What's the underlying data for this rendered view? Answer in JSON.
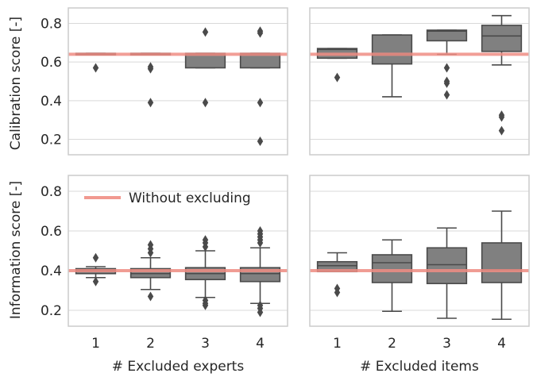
{
  "chart_data": [
    {
      "type": "box",
      "panel": "top-left",
      "title": "",
      "xlabel": "",
      "ylabel": "Calibration score [-]",
      "categories": [
        "1",
        "2",
        "3",
        "4"
      ],
      "ylim": [
        0.12,
        0.88
      ],
      "yticks": [
        "0.2",
        "0.4",
        "0.6",
        "0.8"
      ],
      "baseline": 0.64,
      "boxes": [
        {
          "q1": 0.638,
          "median": 0.642,
          "q3": 0.645,
          "whisker_low": 0.638,
          "whisker_high": 0.645,
          "outliers": [
            0.57
          ]
        },
        {
          "q1": 0.638,
          "median": 0.642,
          "q3": 0.645,
          "whisker_low": 0.638,
          "whisker_high": 0.645,
          "outliers": [
            0.565,
            0.575,
            0.39
          ]
        },
        {
          "q1": 0.57,
          "median": 0.64,
          "q3": 0.645,
          "whisker_low": 0.57,
          "whisker_high": 0.645,
          "outliers": [
            0.755,
            0.39
          ]
        },
        {
          "q1": 0.57,
          "median": 0.64,
          "q3": 0.645,
          "whisker_low": 0.57,
          "whisker_high": 0.645,
          "outliers": [
            0.75,
            0.76,
            0.39,
            0.19
          ]
        }
      ]
    },
    {
      "type": "box",
      "panel": "top-right",
      "title": "",
      "xlabel": "",
      "ylabel": "",
      "categories": [
        "1",
        "2",
        "3",
        "4"
      ],
      "ylim": [
        0.12,
        0.88
      ],
      "baseline": 0.64,
      "boxes": [
        {
          "q1": 0.62,
          "median": 0.665,
          "q3": 0.67,
          "whisker_low": 0.62,
          "whisker_high": 0.67,
          "outliers": [
            0.52
          ]
        },
        {
          "q1": 0.59,
          "median": 0.64,
          "q3": 0.74,
          "whisker_low": 0.42,
          "whisker_high": 0.74,
          "outliers": []
        },
        {
          "q1": 0.71,
          "median": 0.76,
          "q3": 0.765,
          "whisker_low": 0.64,
          "whisker_high": 0.765,
          "outliers": [
            0.57,
            0.5,
            0.49,
            0.43
          ]
        },
        {
          "q1": 0.655,
          "median": 0.735,
          "q3": 0.79,
          "whisker_low": 0.585,
          "whisker_high": 0.84,
          "outliers": [
            0.325,
            0.315,
            0.245
          ]
        }
      ]
    },
    {
      "type": "box",
      "panel": "bottom-left",
      "title": "",
      "xlabel": "# Excluded experts",
      "ylabel": "Information score [-]",
      "categories": [
        "1",
        "2",
        "3",
        "4"
      ],
      "ylim": [
        0.12,
        0.88
      ],
      "yticks": [
        "0.2",
        "0.4",
        "0.6",
        "0.8"
      ],
      "baseline": 0.4,
      "legend": {
        "label": "Without excluding",
        "color": "#f08e84",
        "position": "upper-left"
      },
      "boxes": [
        {
          "q1": 0.385,
          "median": 0.4,
          "q3": 0.41,
          "whisker_low": 0.365,
          "whisker_high": 0.42,
          "outliers": [
            0.465,
            0.345
          ]
        },
        {
          "q1": 0.365,
          "median": 0.385,
          "q3": 0.41,
          "whisker_low": 0.305,
          "whisker_high": 0.465,
          "outliers": [
            0.53,
            0.51,
            0.49,
            0.27
          ]
        },
        {
          "q1": 0.355,
          "median": 0.385,
          "q3": 0.415,
          "whisker_low": 0.265,
          "whisker_high": 0.5,
          "outliers": [
            0.555,
            0.54,
            0.52,
            0.25,
            0.235,
            0.225
          ]
        },
        {
          "q1": 0.345,
          "median": 0.385,
          "q3": 0.415,
          "whisker_low": 0.235,
          "whisker_high": 0.515,
          "outliers": [
            0.6,
            0.585,
            0.57,
            0.555,
            0.54,
            0.225,
            0.21,
            0.19
          ]
        }
      ]
    },
    {
      "type": "box",
      "panel": "bottom-right",
      "title": "",
      "xlabel": "# Excluded items",
      "ylabel": "",
      "categories": [
        "1",
        "2",
        "3",
        "4"
      ],
      "ylim": [
        0.12,
        0.88
      ],
      "baseline": 0.4,
      "boxes": [
        {
          "q1": 0.395,
          "median": 0.425,
          "q3": 0.445,
          "whisker_low": 0.395,
          "whisker_high": 0.49,
          "outliers": [
            0.31,
            0.29
          ]
        },
        {
          "q1": 0.34,
          "median": 0.44,
          "q3": 0.48,
          "whisker_low": 0.195,
          "whisker_high": 0.555,
          "outliers": []
        },
        {
          "q1": 0.335,
          "median": 0.43,
          "q3": 0.515,
          "whisker_low": 0.16,
          "whisker_high": 0.615,
          "outliers": []
        },
        {
          "q1": 0.34,
          "median": 0.405,
          "q3": 0.54,
          "whisker_low": 0.155,
          "whisker_high": 0.7,
          "outliers": []
        }
      ]
    }
  ],
  "colors": {
    "box_fill": "#808080",
    "box_edge": "#4a4a4a",
    "baseline": "#f08e84",
    "grid": "#d9d9d9",
    "frame": "#cccccc",
    "text": "#262626"
  }
}
